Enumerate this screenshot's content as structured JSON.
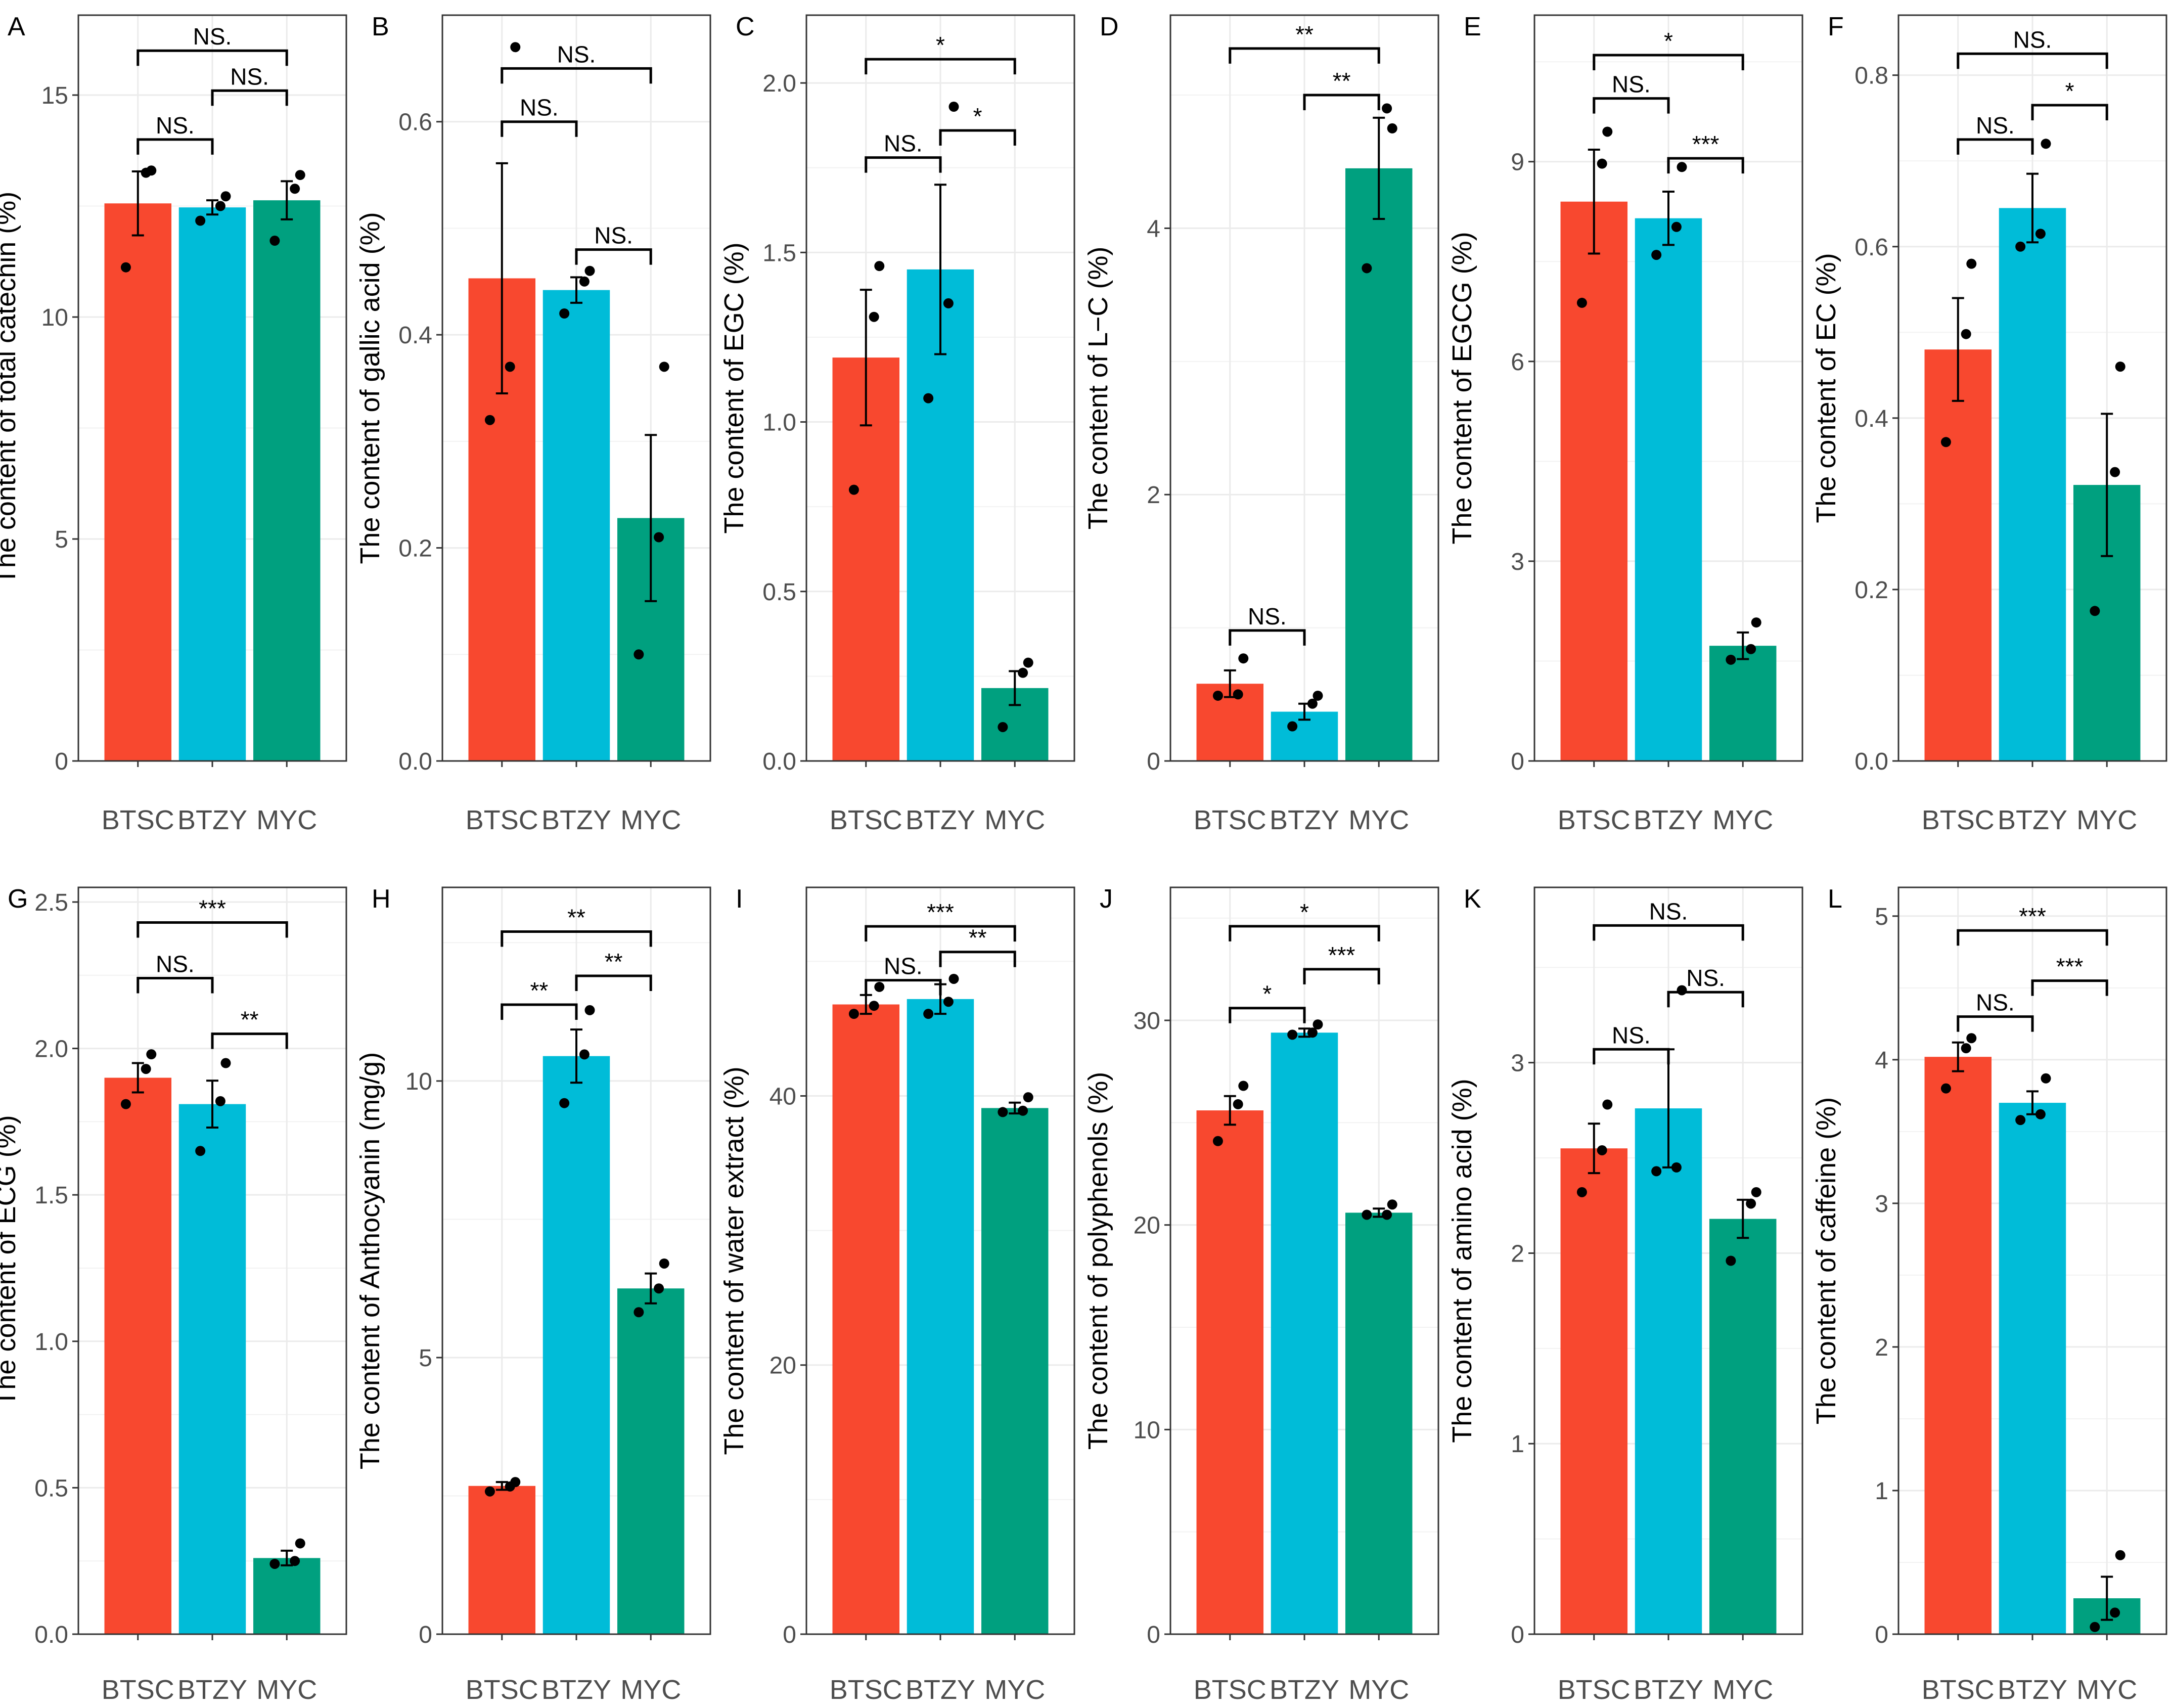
{
  "colors": {
    "BTSC": "#F8482F",
    "BTZY": "#00BCD8",
    "MYC": "#00A07F"
  },
  "chart_data": [
    {
      "type": "bar",
      "panel": "A",
      "categories": [
        "BTSC",
        "BTZY",
        "MYC"
      ],
      "values": [
        12.56,
        12.47,
        12.63
      ],
      "errors": [
        0.72,
        0.16,
        0.43
      ],
      "points": [
        [
          11.12,
          13.25,
          13.3
        ],
        [
          12.17,
          12.5,
          12.72
        ],
        [
          11.72,
          12.89,
          13.2
        ]
      ],
      "ylabel": "The content of total catechin (%)",
      "ylim": [
        0,
        16.8
      ],
      "yticks": [
        0,
        5,
        10,
        15
      ],
      "ytick_labels": [
        "0",
        "5",
        "10",
        "15"
      ],
      "comparisons": [
        {
          "from": 0,
          "to": 2,
          "y": 16.0,
          "label": "NS."
        },
        {
          "from": 1,
          "to": 2,
          "y": 15.1,
          "label": "NS."
        },
        {
          "from": 0,
          "to": 1,
          "y": 14.0,
          "label": "NS."
        }
      ]
    },
    {
      "type": "bar",
      "panel": "B",
      "categories": [
        "BTSC",
        "BTZY",
        "MYC"
      ],
      "values": [
        0.453,
        0.442,
        0.228
      ],
      "errors": [
        0.108,
        0.012,
        0.078
      ],
      "points": [
        [
          0.32,
          0.37,
          0.67
        ],
        [
          0.42,
          0.45,
          0.46
        ],
        [
          0.1,
          0.21,
          0.37
        ]
      ],
      "ylabel": "The content of gallic acid (%)",
      "ylim": [
        0,
        0.7
      ],
      "yticks": [
        0,
        0.2,
        0.4,
        0.6
      ],
      "ytick_labels": [
        "0.0",
        "0.2",
        "0.4",
        "0.6"
      ],
      "comparisons": [
        {
          "from": 0,
          "to": 2,
          "y": 0.65,
          "label": "NS."
        },
        {
          "from": 0,
          "to": 1,
          "y": 0.6,
          "label": "NS."
        },
        {
          "from": 1,
          "to": 2,
          "y": 0.48,
          "label": "NS."
        }
      ]
    },
    {
      "type": "bar",
      "panel": "C",
      "categories": [
        "BTSC",
        "BTZY",
        "MYC"
      ],
      "values": [
        1.19,
        1.45,
        0.215
      ],
      "errors": [
        0.2,
        0.25,
        0.05
      ],
      "points": [
        [
          0.8,
          1.31,
          1.46
        ],
        [
          1.07,
          1.35,
          1.93
        ],
        [
          0.1,
          0.26,
          0.29
        ]
      ],
      "ylabel": "The content of EGC (%)",
      "ylim": [
        0,
        2.2
      ],
      "yticks": [
        0,
        0.5,
        1.0,
        1.5,
        2.0
      ],
      "ytick_labels": [
        "0.0",
        "0.5",
        "1.0",
        "1.5",
        "2.0"
      ],
      "comparisons": [
        {
          "from": 0,
          "to": 2,
          "y": 2.07,
          "label": "*"
        },
        {
          "from": 1,
          "to": 2,
          "y": 1.86,
          "label": "*"
        },
        {
          "from": 0,
          "to": 1,
          "y": 1.78,
          "label": "NS."
        }
      ]
    },
    {
      "type": "bar",
      "panel": "D",
      "categories": [
        "BTSC",
        "BTZY",
        "MYC"
      ],
      "values": [
        0.58,
        0.37,
        4.45
      ],
      "errors": [
        0.1,
        0.06,
        0.38
      ],
      "points": [
        [
          0.49,
          0.5,
          0.77
        ],
        [
          0.26,
          0.43,
          0.49
        ],
        [
          3.7,
          4.9,
          4.75
        ]
      ],
      "ylabel": "The content of L−C (%)",
      "ylim": [
        0,
        5.6
      ],
      "yticks": [
        0,
        2,
        4
      ],
      "ytick_labels": [
        "0",
        "2",
        "4"
      ],
      "comparisons": [
        {
          "from": 0,
          "to": 2,
          "y": 5.35,
          "label": "**"
        },
        {
          "from": 1,
          "to": 2,
          "y": 5.0,
          "label": "**"
        },
        {
          "from": 0,
          "to": 1,
          "y": 0.98,
          "label": "NS."
        }
      ]
    },
    {
      "type": "bar",
      "panel": "E",
      "categories": [
        "BTSC",
        "BTZY",
        "MYC"
      ],
      "values": [
        8.4,
        8.15,
        1.73
      ],
      "errors": [
        0.78,
        0.4,
        0.2
      ],
      "points": [
        [
          6.88,
          8.97,
          9.45
        ],
        [
          7.6,
          8.02,
          8.92
        ],
        [
          1.52,
          1.68,
          2.08
        ]
      ],
      "ylabel": "The content of EGCG (%)",
      "ylim": [
        0,
        11.2
      ],
      "yticks": [
        0,
        3,
        6,
        9
      ],
      "ytick_labels": [
        "0",
        "3",
        "6",
        "9"
      ],
      "comparisons": [
        {
          "from": 0,
          "to": 2,
          "y": 10.6,
          "label": "*"
        },
        {
          "from": 0,
          "to": 1,
          "y": 9.95,
          "label": "NS."
        },
        {
          "from": 1,
          "to": 2,
          "y": 9.05,
          "label": "***"
        }
      ]
    },
    {
      "type": "bar",
      "panel": "F",
      "categories": [
        "BTSC",
        "BTZY",
        "MYC"
      ],
      "values": [
        0.48,
        0.645,
        0.322
      ],
      "errors": [
        0.06,
        0.04,
        0.083
      ],
      "points": [
        [
          0.372,
          0.498,
          0.58
        ],
        [
          0.6,
          0.615,
          0.72
        ],
        [
          0.175,
          0.337,
          0.46
        ]
      ],
      "ylabel": "The content of EC (%)",
      "ylim": [
        0,
        0.87
      ],
      "yticks": [
        0,
        0.2,
        0.4,
        0.6,
        0.8
      ],
      "ytick_labels": [
        "0.0",
        "0.2",
        "0.4",
        "0.6",
        "0.8"
      ],
      "comparisons": [
        {
          "from": 0,
          "to": 2,
          "y": 0.825,
          "label": "NS."
        },
        {
          "from": 1,
          "to": 2,
          "y": 0.765,
          "label": "*"
        },
        {
          "from": 0,
          "to": 1,
          "y": 0.725,
          "label": "NS."
        }
      ]
    },
    {
      "type": "bar",
      "panel": "G",
      "categories": [
        "BTSC",
        "BTZY",
        "MYC"
      ],
      "values": [
        1.9,
        1.81,
        0.26
      ],
      "errors": [
        0.05,
        0.08,
        0.025
      ],
      "points": [
        [
          1.81,
          1.93,
          1.98
        ],
        [
          1.65,
          1.82,
          1.95
        ],
        [
          0.24,
          0.25,
          0.31
        ]
      ],
      "ylabel": "The content of ECG (%)",
      "ylim": [
        0,
        2.55
      ],
      "yticks": [
        0,
        0.5,
        1.0,
        1.5,
        2.0,
        2.5
      ],
      "ytick_labels": [
        "0.0",
        "0.5",
        "1.0",
        "1.5",
        "2.0",
        "2.5"
      ],
      "comparisons": [
        {
          "from": 0,
          "to": 2,
          "y": 2.43,
          "label": "***"
        },
        {
          "from": 0,
          "to": 1,
          "y": 2.24,
          "label": "NS."
        },
        {
          "from": 1,
          "to": 2,
          "y": 2.05,
          "label": "**"
        }
      ]
    },
    {
      "type": "bar",
      "panel": "H",
      "categories": [
        "BTSC",
        "BTZY",
        "MYC"
      ],
      "values": [
        2.68,
        10.45,
        6.25
      ],
      "errors": [
        0.07,
        0.48,
        0.27
      ],
      "points": [
        [
          2.58,
          2.67,
          2.75
        ],
        [
          9.6,
          10.48,
          11.28
        ],
        [
          5.82,
          6.25,
          6.7
        ]
      ],
      "ylabel": "The content of Anthocyanin (mg/g)",
      "ylim": [
        0,
        13.5
      ],
      "yticks": [
        0,
        5,
        10
      ],
      "ytick_labels": [
        "0",
        "5",
        "10"
      ],
      "comparisons": [
        {
          "from": 0,
          "to": 2,
          "y": 12.7,
          "label": "**"
        },
        {
          "from": 1,
          "to": 2,
          "y": 11.9,
          "label": "**"
        },
        {
          "from": 0,
          "to": 1,
          "y": 11.38,
          "label": "**"
        }
      ]
    },
    {
      "type": "bar",
      "panel": "I",
      "categories": [
        "BTSC",
        "BTZY",
        "MYC"
      ],
      "values": [
        46.8,
        47.2,
        39.1
      ],
      "errors": [
        0.7,
        1.1,
        0.4
      ],
      "points": [
        [
          46.1,
          46.7,
          48.1
        ],
        [
          46.1,
          47.0,
          48.7
        ],
        [
          38.8,
          38.9,
          39.9
        ]
      ],
      "ylabel": "The content of water extract (%)",
      "ylim": [
        0,
        55.5
      ],
      "yticks": [
        0,
        20,
        40
      ],
      "ytick_labels": [
        "0",
        "20",
        "40"
      ],
      "comparisons": [
        {
          "from": 0,
          "to": 2,
          "y": 52.6,
          "label": "***"
        },
        {
          "from": 1,
          "to": 2,
          "y": 50.7,
          "label": "**"
        },
        {
          "from": 0,
          "to": 1,
          "y": 48.6,
          "label": "NS."
        }
      ]
    },
    {
      "type": "bar",
      "panel": "J",
      "categories": [
        "BTSC",
        "BTZY",
        "MYC"
      ],
      "values": [
        25.6,
        29.4,
        20.6
      ],
      "errors": [
        0.7,
        0.2,
        0.2
      ],
      "points": [
        [
          24.1,
          25.9,
          26.8
        ],
        [
          29.3,
          29.4,
          29.8
        ],
        [
          20.5,
          20.5,
          21.0
        ]
      ],
      "ylabel": "The content of polyphenols (%)",
      "ylim": [
        0,
        36.5
      ],
      "yticks": [
        0,
        10,
        20,
        30
      ],
      "ytick_labels": [
        "0",
        "10",
        "20",
        "30"
      ],
      "comparisons": [
        {
          "from": 0,
          "to": 2,
          "y": 34.6,
          "label": "*"
        },
        {
          "from": 1,
          "to": 2,
          "y": 32.5,
          "label": "***"
        },
        {
          "from": 0,
          "to": 1,
          "y": 30.6,
          "label": "*"
        }
      ]
    },
    {
      "type": "bar",
      "panel": "K",
      "categories": [
        "BTSC",
        "BTZY",
        "MYC"
      ],
      "values": [
        2.55,
        2.76,
        2.18
      ],
      "errors": [
        0.13,
        0.31,
        0.1
      ],
      "points": [
        [
          2.32,
          2.54,
          2.78
        ],
        [
          2.43,
          2.45,
          3.38
        ],
        [
          1.96,
          2.26,
          2.32
        ]
      ],
      "ylabel": "The content of amino acid (%)",
      "ylim": [
        0,
        3.92
      ],
      "yticks": [
        0,
        1,
        2,
        3
      ],
      "ytick_labels": [
        "0",
        "1",
        "2",
        "3"
      ],
      "comparisons": [
        {
          "from": 0,
          "to": 2,
          "y": 3.72,
          "label": "NS."
        },
        {
          "from": 1,
          "to": 2,
          "y": 3.37,
          "label": "NS."
        },
        {
          "from": 0,
          "to": 1,
          "y": 3.07,
          "label": "NS."
        }
      ]
    },
    {
      "type": "bar",
      "panel": "L",
      "categories": [
        "BTSC",
        "BTZY",
        "MYC"
      ],
      "values": [
        4.02,
        3.7,
        0.25
      ],
      "errors": [
        0.1,
        0.08,
        0.15
      ],
      "points": [
        [
          3.8,
          4.08,
          4.15
        ],
        [
          3.58,
          3.62,
          3.87
        ],
        [
          0.05,
          0.15,
          0.55
        ]
      ],
      "ylabel": "The content of caffeine (%)",
      "ylim": [
        0,
        5.2
      ],
      "yticks": [
        0,
        1,
        2,
        3,
        4,
        5
      ],
      "ytick_labels": [
        "0",
        "1",
        "2",
        "3",
        "4",
        "5"
      ],
      "comparisons": [
        {
          "from": 0,
          "to": 2,
          "y": 4.9,
          "label": "***"
        },
        {
          "from": 1,
          "to": 2,
          "y": 4.55,
          "label": "***"
        },
        {
          "from": 0,
          "to": 1,
          "y": 4.3,
          "label": "NS."
        }
      ]
    }
  ]
}
